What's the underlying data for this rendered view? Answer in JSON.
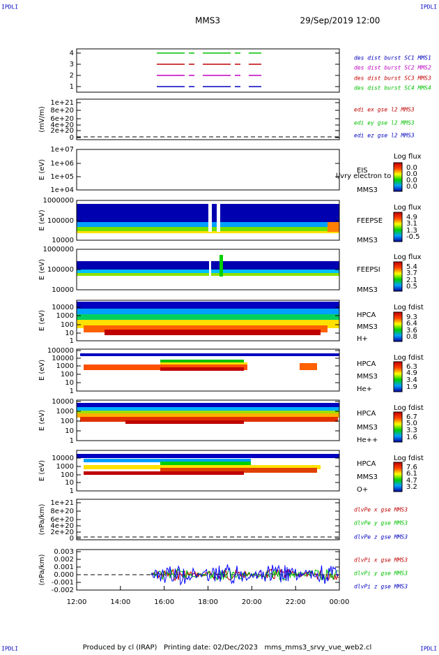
{
  "header": {
    "corner_labels": [
      "IPDLI",
      "IPDLI",
      "IPDLI",
      "IPDLI"
    ],
    "title": "MMS3",
    "date": "29/Sep/2019 12:00"
  },
  "panels": [
    {
      "ylabel": null,
      "yticks": [
        "4",
        "3",
        "2",
        "1"
      ],
      "legend": [
        "des dist burst SC1 MMS1",
        "des dist burst SC2 MMS2",
        "des dist burst SC3 MMS3",
        "des dist burst SC4 MMS4"
      ]
    },
    {
      "ylabel": "(mV/m)",
      "yticks": [
        "1e+21",
        "8e+20",
        "6e+20",
        "4e+20",
        "2e+20",
        "0"
      ],
      "legend": [
        "edi ex gse l2 MMS3",
        "edi ey gse l2 MMS3",
        "edi ez gse l2 MMS3"
      ]
    },
    {
      "ylabel": "E (eV)",
      "yticks": [
        "1e+07",
        "1e+06",
        "1e+05",
        "1e+04"
      ],
      "side_labels": [
        "EIS",
        "MMS3",
        "l/vry electron to"
      ],
      "colorbar_title": "Log flux",
      "colorbar_ticks": [
        "0.0",
        "0.0",
        "0.0",
        "0.0"
      ]
    },
    {
      "ylabel": "E (eV)",
      "yticks": [
        "1000000",
        "100000",
        "10000"
      ],
      "side_labels": [
        "FEEPSE",
        "MMS3"
      ],
      "colorbar_title": "Log flux",
      "colorbar_ticks": [
        "4.9",
        "3.1",
        "1.3",
        "-0.5"
      ]
    },
    {
      "ylabel": "E (eV)",
      "yticks": [
        "1000000",
        "100000",
        "10000"
      ],
      "side_labels": [
        "FEEPSI",
        "MMS3"
      ],
      "colorbar_title": "Log flux",
      "colorbar_ticks": [
        "5.4",
        "3.7",
        "2.1",
        "0.5"
      ]
    },
    {
      "ylabel": "E (eV)",
      "yticks": [
        "10000",
        "1000",
        "100",
        "10",
        "1"
      ],
      "side_labels": [
        "HPCA",
        "MMS3",
        "H+"
      ],
      "colorbar_title": "Log fdist",
      "colorbar_ticks": [
        "9.3",
        "6.4",
        "3.6",
        "0.8"
      ]
    },
    {
      "ylabel": "E (eV)",
      "yticks": [
        "100000",
        "10000",
        "1000",
        "100",
        "10",
        "1"
      ],
      "side_labels": [
        "HPCA",
        "MMS3",
        "He+"
      ],
      "colorbar_title": "Log fdist",
      "colorbar_ticks": [
        "6.3",
        "4.9",
        "3.4",
        "1.9"
      ]
    },
    {
      "ylabel": "E (eV)",
      "yticks": [
        "10000",
        "1000",
        "100",
        "10",
        "1"
      ],
      "side_labels": [
        "HPCA",
        "MMS3",
        "He++"
      ],
      "colorbar_title": "Log fdist",
      "colorbar_ticks": [
        "6.7",
        "5.0",
        "3.3",
        "1.6"
      ]
    },
    {
      "ylabel": "E (eV)",
      "yticks": [
        "10000",
        "1000",
        "100",
        "10",
        "1"
      ],
      "side_labels": [
        "HPCA",
        "MMS3",
        "O+"
      ],
      "colorbar_title": "Log fdist",
      "colorbar_ticks": [
        "7.6",
        "6.1",
        "4.7",
        "3.2"
      ]
    },
    {
      "ylabel": "(nPa/km)",
      "yticks": [
        "1e+21",
        "8e+20",
        "6e+20",
        "4e+20",
        "2e+20",
        "0"
      ],
      "legend": [
        "dlvPe x gse MMS3",
        "dlvPe y gse MMS3",
        "dlvPe z gse MMS3"
      ]
    },
    {
      "ylabel": "(nPa/km)",
      "yticks": [
        "0.003",
        "0.002",
        "0.001",
        "0.000",
        "-0.001",
        "-0.002"
      ],
      "legend": [
        "dlvPi x gse MMS3",
        "dlvPi y gse MMS3",
        "dlvPi z gse MMS3"
      ]
    }
  ],
  "xticks": [
    "12:00",
    "14:00",
    "16:00",
    "18:00",
    "20:00",
    "22:00",
    "00:00"
  ],
  "footer": "Produced by cl (IRAP)   Printing date: 02/Dec/2023   mms_mms3_srvy_vue_web2.cl"
}
